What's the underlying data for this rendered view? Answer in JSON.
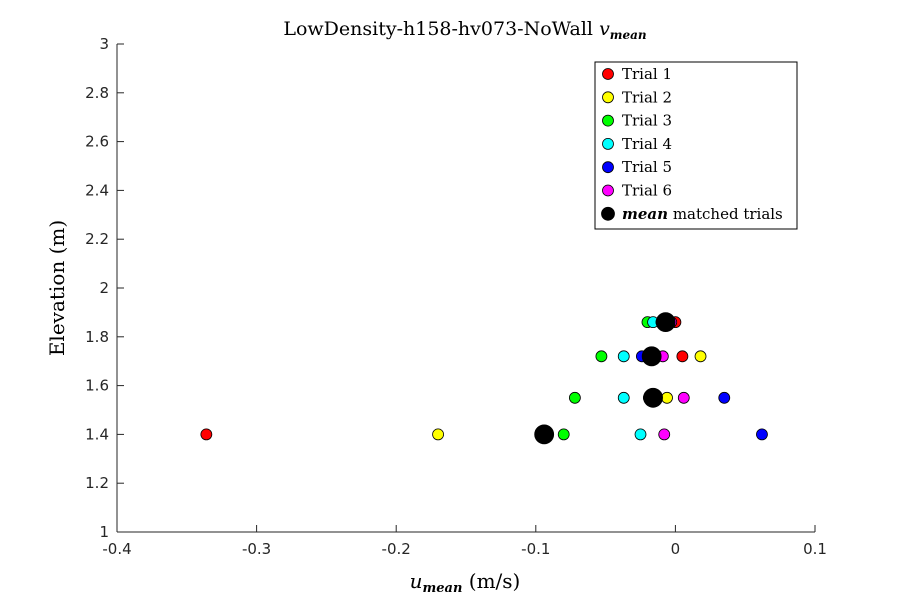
{
  "chart_data": {
    "type": "scatter",
    "title": "LowDensity-h158-hv073-NoWall ",
    "title_math": "v",
    "title_math_sub": "mean",
    "xlabel_math": "u",
    "xlabel_math_sub": "mean",
    "xlabel_unit": " (m/s)",
    "ylabel": "Elevation (m)",
    "xlim": [
      -0.4,
      0.1
    ],
    "ylim": [
      1,
      3
    ],
    "xticks": [
      "-0.4",
      "-0.3",
      "-0.2",
      "-0.1",
      "0",
      "0.1"
    ],
    "yticks": [
      "1",
      "1.2",
      "1.4",
      "1.6",
      "1.8",
      "2",
      "2.2",
      "2.4",
      "2.6",
      "2.8",
      "3"
    ],
    "grid": false,
    "legend_position": "top-right",
    "series": [
      {
        "name": "Trial 1",
        "color": "#ff0000",
        "points": [
          {
            "x": -0.336,
            "y": 1.4
          },
          {
            "x": -0.019,
            "y": 1.55
          },
          {
            "x": 0.005,
            "y": 1.72
          },
          {
            "x": 0.0,
            "y": 1.86
          }
        ]
      },
      {
        "name": "Trial 2",
        "color": "#ffff00",
        "points": [
          {
            "x": -0.17,
            "y": 1.4
          },
          {
            "x": -0.006,
            "y": 1.55
          },
          {
            "x": 0.018,
            "y": 1.72
          },
          {
            "x": -0.009,
            "y": 1.86
          }
        ]
      },
      {
        "name": "Trial 3",
        "color": "#00ff00",
        "points": [
          {
            "x": -0.08,
            "y": 1.4
          },
          {
            "x": -0.072,
            "y": 1.55
          },
          {
            "x": -0.053,
            "y": 1.72
          },
          {
            "x": -0.02,
            "y": 1.86
          }
        ]
      },
      {
        "name": "Trial 4",
        "color": "#00ffff",
        "points": [
          {
            "x": -0.025,
            "y": 1.4
          },
          {
            "x": -0.037,
            "y": 1.55
          },
          {
            "x": -0.037,
            "y": 1.72
          },
          {
            "x": -0.016,
            "y": 1.86
          }
        ]
      },
      {
        "name": "Trial 5",
        "color": "#0000ff",
        "points": [
          {
            "x": 0.062,
            "y": 1.4
          },
          {
            "x": 0.035,
            "y": 1.55
          },
          {
            "x": -0.024,
            "y": 1.72
          },
          {
            "x": -0.01,
            "y": 1.86
          }
        ]
      },
      {
        "name": "Trial 6",
        "color": "#ff00ff",
        "points": [
          {
            "x": -0.008,
            "y": 1.4
          },
          {
            "x": 0.006,
            "y": 1.55
          },
          {
            "x": -0.009,
            "y": 1.72
          },
          {
            "x": -0.003,
            "y": 1.86
          }
        ]
      },
      {
        "name": "mean",
        "name_suffix": " matched trials",
        "color": "#000000",
        "large": true,
        "points": [
          {
            "x": -0.094,
            "y": 1.4
          },
          {
            "x": -0.016,
            "y": 1.55
          },
          {
            "x": -0.017,
            "y": 1.72
          },
          {
            "x": -0.007,
            "y": 1.86
          }
        ]
      }
    ]
  }
}
